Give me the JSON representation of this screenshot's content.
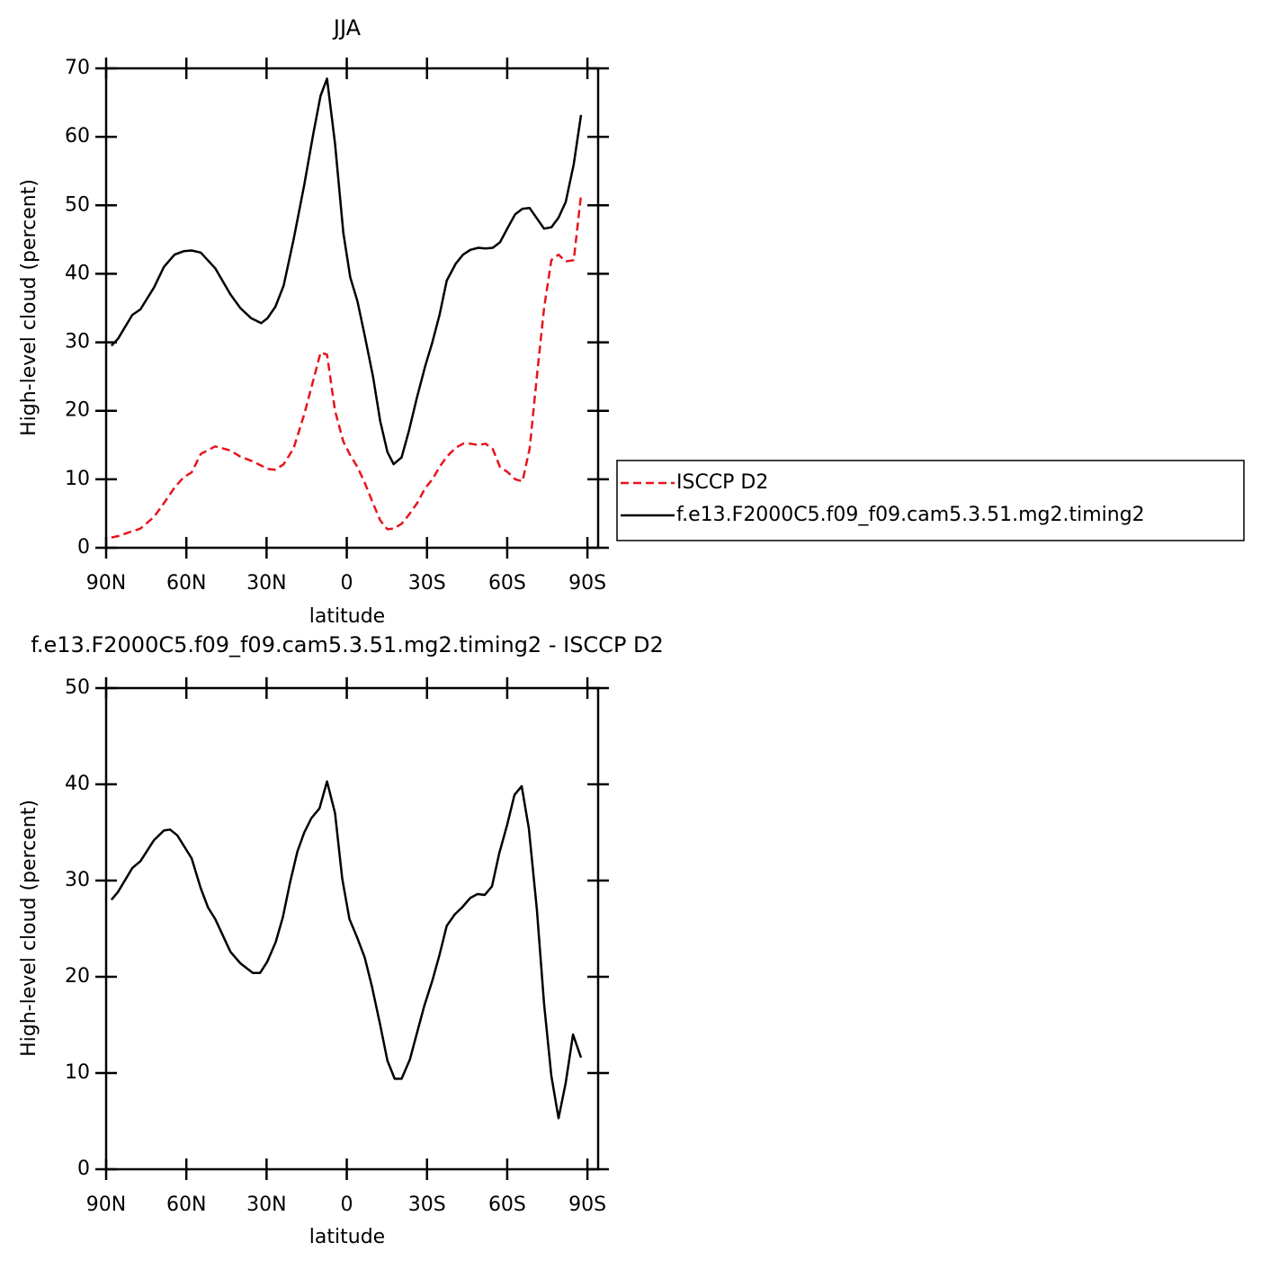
{
  "chart_data": [
    {
      "type": "line",
      "title": "JJA",
      "xlabel": "latitude",
      "ylabel": "High-level cloud (percent)",
      "x": [
        88.0,
        85.6,
        80.2,
        77.2,
        72.1,
        68.4,
        64.4,
        61.0,
        58.0,
        54.6,
        49.2,
        43.5,
        39.8,
        35.7,
        32.0,
        29.7,
        26.7,
        23.6,
        19.9,
        15.9,
        12.5,
        9.8,
        7.4,
        4.4,
        1.3,
        -1.3,
        -4.0,
        -6.7,
        -9.8,
        -12.5,
        -15.2,
        -17.5,
        -20.5,
        -23.2,
        -26.3,
        -29.3,
        -32.0,
        -34.7,
        -37.4,
        -40.8,
        -43.5,
        -46.2,
        -49.2,
        -51.9,
        -54.6,
        -57.3,
        -60.3,
        -63.0,
        -65.7,
        -68.4,
        -71.1,
        -73.8,
        -76.5,
        -79.2,
        -81.9,
        -84.9,
        -87.6
      ],
      "series": [
        {
          "name": "ISCCP D2",
          "color": "#e8141c",
          "linestyle": "dashed",
          "values": [
            1.5,
            1.7,
            2.4,
            2.8,
            4.5,
            6.5,
            8.8,
            10.3,
            11,
            13.7,
            14.8,
            14.2,
            13.3,
            12.7,
            12,
            11.5,
            11.4,
            12.2,
            14.5,
            19.5,
            24.5,
            28.5,
            28.2,
            20,
            15.5,
            13.5,
            11.8,
            9.5,
            6.5,
            4,
            2.7,
            2.8,
            3.5,
            4.8,
            6.5,
            8.7,
            10,
            11.8,
            13.3,
            14.6,
            15.2,
            15.2,
            15,
            15.2,
            14.4,
            11.8,
            11,
            10,
            9.7,
            14.5,
            25,
            35,
            42,
            42.8,
            41.8,
            42,
            51.5
          ]
        },
        {
          "name": "f.e13.F2000C5.f09_f09.cam5.3.51.mg2.timing2",
          "color": "#000000",
          "linestyle": "solid",
          "values": [
            29.5,
            30.5,
            34,
            34.8,
            38,
            41,
            42.8,
            43.3,
            43.4,
            43.1,
            40.8,
            37,
            35,
            33.5,
            32.8,
            33.5,
            35.2,
            38.3,
            45,
            53,
            60.5,
            66,
            68.5,
            59,
            46,
            39.5,
            36,
            31,
            25,
            18.5,
            14,
            12.2,
            13.2,
            17,
            22,
            26.5,
            30,
            34,
            39,
            41.5,
            42.8,
            43.5,
            43.8,
            43.7,
            43.8,
            44.6,
            46.8,
            48.7,
            49.5,
            49.6,
            48.1,
            46.6,
            46.8,
            48.2,
            50.5,
            56,
            63.2
          ]
        }
      ],
      "xlim": [
        90,
        -94
      ],
      "xticks": [
        {
          "value": 90,
          "label": "90N"
        },
        {
          "value": 60,
          "label": "60N"
        },
        {
          "value": 30,
          "label": "30N"
        },
        0,
        {
          "value": -30,
          "label": "30S"
        },
        {
          "value": -60,
          "label": "60S"
        },
        {
          "value": -90,
          "label": "90S"
        }
      ],
      "ylim": [
        0,
        70
      ],
      "yticks": [
        0,
        10,
        20,
        30,
        40,
        50,
        60,
        70
      ],
      "legend": "right"
    },
    {
      "type": "line",
      "title": "f.e13.F2000C5.f09_f09.cam5.3.51.mg2.timing2 - ISCCP D2",
      "xlabel": "latitude",
      "ylabel": "High-level cloud (percent)",
      "x": [
        88.0,
        85.6,
        80.2,
        77.2,
        72.1,
        68.4,
        66.1,
        63.4,
        58.0,
        54.6,
        51.9,
        49.2,
        43.5,
        39.8,
        35.1,
        32.4,
        29.7,
        26.6,
        23.9,
        21.2,
        18.5,
        15.9,
        13.2,
        10.2,
        7.4,
        4.4,
        1.7,
        -1.0,
        -3.7,
        -6.7,
        -9.4,
        -12.5,
        -15.2,
        -17.9,
        -20.5,
        -23.6,
        -26.3,
        -29.0,
        -32.0,
        -34.7,
        -37.4,
        -40.4,
        -43.1,
        -46.2,
        -48.9,
        -51.6,
        -54.3,
        -57.0,
        -60.0,
        -62.7,
        -65.4,
        -68.1,
        -71.1,
        -73.8,
        -76.5,
        -79.2,
        -81.9,
        -84.6,
        -87.6
      ],
      "series": [
        {
          "color": "#000000",
          "linestyle": "solid",
          "values": [
            28,
            28.8,
            31.3,
            32,
            34.2,
            35.2,
            35.3,
            34.7,
            32.3,
            29.2,
            27.2,
            26,
            22.6,
            21.4,
            20.4,
            20.4,
            21.6,
            23.6,
            26.2,
            29.8,
            33,
            35,
            36.5,
            37.5,
            40.3,
            37,
            30.2,
            26,
            24.2,
            22,
            19,
            15,
            11.3,
            9.4,
            9.4,
            11.4,
            14.2,
            17,
            19.6,
            22.3,
            25.3,
            26.5,
            27.2,
            28.2,
            28.6,
            28.5,
            29.4,
            32.8,
            35.8,
            38.9,
            39.8,
            35.4,
            27,
            17.2,
            9.7,
            5.3,
            9,
            14,
            11.6
          ]
        }
      ],
      "xlim": [
        90,
        -94
      ],
      "xticks": [
        {
          "value": 90,
          "label": "90N"
        },
        {
          "value": 60,
          "label": "60N"
        },
        {
          "value": 30,
          "label": "30N"
        },
        0,
        {
          "value": -30,
          "label": "30S"
        },
        {
          "value": -60,
          "label": "60S"
        },
        {
          "value": -90,
          "label": "90S"
        }
      ],
      "ylim": [
        0,
        50
      ],
      "yticks": [
        0,
        10,
        20,
        30,
        40,
        50
      ]
    }
  ]
}
